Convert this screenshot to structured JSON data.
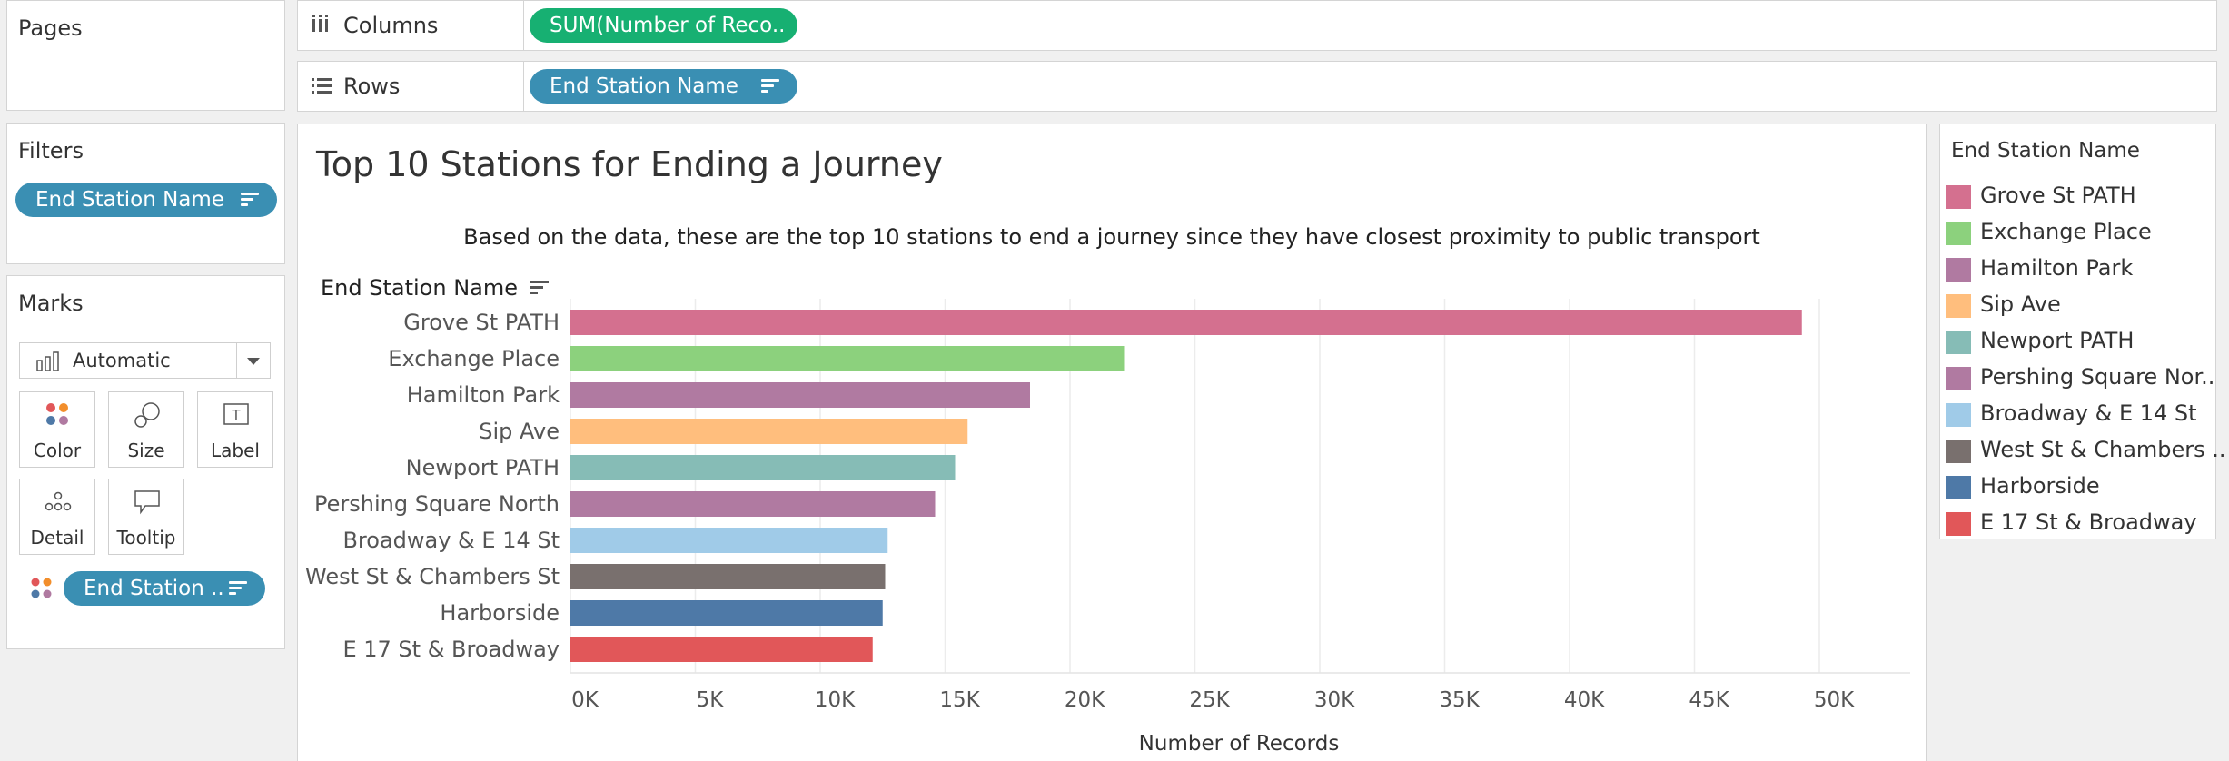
{
  "shelves": {
    "pages_label": "Pages",
    "columns_label": "Columns",
    "columns_pill": "SUM(Number of Reco..",
    "rows_label": "Rows",
    "rows_pill": "End Station Name"
  },
  "filters": {
    "title": "Filters",
    "pill": "End Station Name"
  },
  "marks": {
    "title": "Marks",
    "type_select": "Automatic",
    "cards": {
      "color": "Color",
      "size": "Size",
      "label": "Label",
      "detail": "Detail",
      "tooltip": "Tooltip"
    },
    "pill": "End Station .."
  },
  "view": {
    "title": "Top 10 Stations for Ending a Journey",
    "subtitle": "Based on the data, these are the top 10 stations to end a journey since they have closest proximity to public transport",
    "row_header": "End Station Name"
  },
  "legend": {
    "title": "End Station Name",
    "items": [
      {
        "label": "Grove St PATH",
        "color": "#d4708f"
      },
      {
        "label": "Exchange Place",
        "color": "#8cd17d"
      },
      {
        "label": "Hamilton Park",
        "color": "#b07aa1"
      },
      {
        "label": "Sip Ave",
        "color": "#ffbe7d"
      },
      {
        "label": "Newport PATH",
        "color": "#86bcb6"
      },
      {
        "label": "Pershing Square Nor..",
        "color": "#b07aa1"
      },
      {
        "label": "Broadway & E 14 St",
        "color": "#a0cbe8"
      },
      {
        "label": "West St & Chambers ..",
        "color": "#79706e"
      },
      {
        "label": "Harborside",
        "color": "#4e79a7"
      },
      {
        "label": "E 17 St & Broadway",
        "color": "#e15759"
      }
    ]
  },
  "chart_data": {
    "type": "bar",
    "orientation": "horizontal",
    "categories": [
      "Grove St PATH",
      "Exchange Place",
      "Hamilton Park",
      "Sip Ave",
      "Newport PATH",
      "Pershing Square North",
      "Broadway & E 14 St",
      "West St & Chambers St",
      "Harborside",
      "E 17 St & Broadway"
    ],
    "values": [
      49300,
      22200,
      18400,
      15900,
      15400,
      14600,
      12700,
      12600,
      12500,
      12100
    ],
    "colors": [
      "#d4708f",
      "#8cd17d",
      "#b07aa1",
      "#ffbe7d",
      "#86bcb6",
      "#b07aa1",
      "#a0cbe8",
      "#79706e",
      "#4e79a7",
      "#e15759"
    ],
    "xlabel": "Number of Records",
    "xlim": [
      0,
      52000
    ],
    "x_ticks": [
      0,
      5000,
      10000,
      15000,
      20000,
      25000,
      30000,
      35000,
      40000,
      45000,
      50000
    ],
    "x_tick_labels": [
      "0K",
      "5K",
      "10K",
      "15K",
      "20K",
      "25K",
      "30K",
      "35K",
      "40K",
      "45K",
      "50K"
    ],
    "grid": "vertical"
  }
}
